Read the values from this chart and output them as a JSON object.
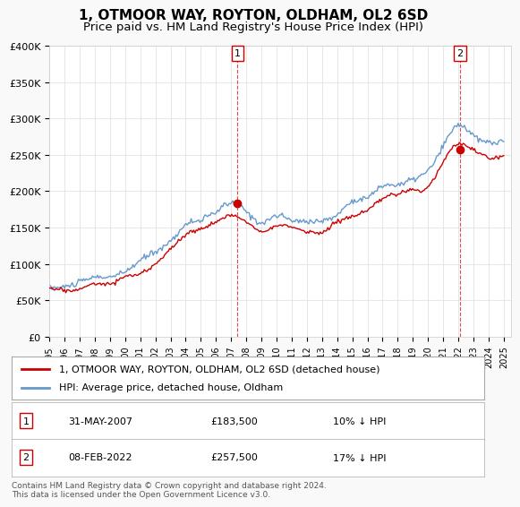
{
  "title": "1, OTMOOR WAY, ROYTON, OLDHAM, OL2 6SD",
  "subtitle": "Price paid vs. HM Land Registry's House Price Index (HPI)",
  "ylabel": "",
  "ylim": [
    0,
    400000
  ],
  "yticks": [
    0,
    50000,
    100000,
    150000,
    200000,
    250000,
    300000,
    350000,
    400000
  ],
  "ytick_labels": [
    "£0",
    "£50K",
    "£100K",
    "£150K",
    "£200K",
    "£250K",
    "£300K",
    "£350K",
    "£400K"
  ],
  "xlim_start": 1995.0,
  "xlim_end": 2025.5,
  "red_line_label": "1, OTMOOR WAY, ROYTON, OLDHAM, OL2 6SD (detached house)",
  "blue_line_label": "HPI: Average price, detached house, Oldham",
  "marker1_x": 2007.42,
  "marker1_y": 183500,
  "marker1_label": "1",
  "marker1_date": "31-MAY-2007",
  "marker1_price": "£183,500",
  "marker1_hpi": "10% ↓ HPI",
  "marker2_x": 2022.1,
  "marker2_y": 257500,
  "marker2_label": "2",
  "marker2_date": "08-FEB-2022",
  "marker2_price": "£257,500",
  "marker2_hpi": "17% ↓ HPI",
  "copyright": "Contains HM Land Registry data © Crown copyright and database right 2024.\nThis data is licensed under the Open Government Licence v3.0.",
  "bg_color": "#f9f9f9",
  "plot_bg_color": "#ffffff",
  "red_color": "#cc0000",
  "blue_color": "#6699cc",
  "grid_color": "#dddddd",
  "title_fontsize": 11,
  "subtitle_fontsize": 9.5
}
